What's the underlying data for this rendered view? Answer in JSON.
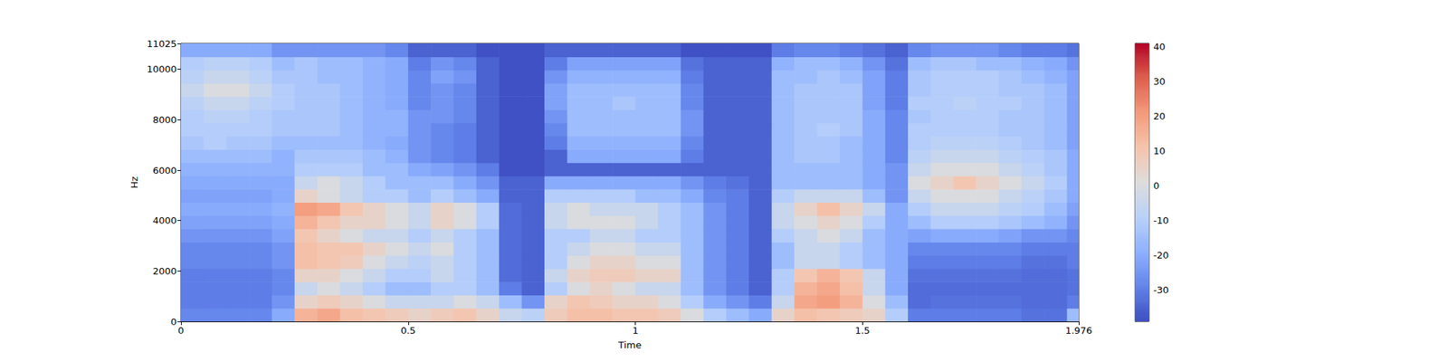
{
  "chart_data": {
    "type": "heatmap",
    "x_label": "Time",
    "y_label": "Hz",
    "xlim": [
      0,
      1.976
    ],
    "xticks": [
      0,
      0.5,
      1,
      1.5
    ],
    "ylim": [
      0,
      11025
    ],
    "yticks": [
      0,
      2000,
      4000,
      6000,
      8000,
      10000
    ],
    "grid": false,
    "color": "coolwarm",
    "x_edges": [
      0,
      0.05,
      0.1,
      0.15,
      0.2,
      0.25,
      0.3,
      0.35,
      0.4,
      0.45,
      0.5,
      0.55,
      0.6,
      0.65,
      0.7,
      0.75,
      0.8,
      0.85,
      0.9,
      0.95,
      1.0,
      1.05,
      1.1,
      1.15,
      1.2,
      1.25,
      1.3,
      1.35,
      1.4,
      1.45,
      1.5,
      1.55,
      1.6,
      1.65,
      1.7,
      1.75,
      1.8,
      1.85,
      1.9,
      1.95,
      1.976
    ],
    "y_edges": [
      0,
      525,
      1050,
      1575,
      2100,
      2625,
      3150,
      3675,
      4200,
      4725,
      5250,
      5775,
      6300,
      6825,
      7350,
      7875,
      8400,
      8925,
      9450,
      9975,
      10500,
      11025
    ],
    "values": [
      [
        -28,
        -28,
        -28,
        -28,
        -20,
        15,
        18,
        12,
        10,
        8,
        5,
        8,
        10,
        5,
        -5,
        -8,
        8,
        12,
        12,
        10,
        10,
        8,
        0,
        -10,
        -15,
        -20,
        5,
        12,
        10,
        8,
        5,
        -10,
        -30,
        -30,
        -30,
        -30,
        -30,
        -32,
        -32,
        -15
      ],
      [
        -30,
        -30,
        -30,
        -30,
        -25,
        5,
        8,
        5,
        0,
        -5,
        -5,
        -5,
        0,
        -5,
        -15,
        -25,
        5,
        10,
        8,
        5,
        5,
        0,
        -10,
        -20,
        -25,
        -30,
        -5,
        18,
        20,
        15,
        0,
        -15,
        -33,
        -32,
        -32,
        -32,
        -32,
        -33,
        -33,
        -30
      ],
      [
        -30,
        -30,
        -30,
        -30,
        -28,
        -5,
        0,
        -5,
        -10,
        -15,
        -15,
        -10,
        -10,
        -15,
        -30,
        -35,
        -10,
        0,
        5,
        0,
        -5,
        -5,
        -15,
        -25,
        -30,
        -35,
        -10,
        15,
        18,
        12,
        -5,
        -20,
        -33,
        -33,
        -33,
        -33,
        -33,
        -33,
        -33,
        -32
      ],
      [
        -30,
        -30,
        -30,
        -30,
        -28,
        5,
        5,
        0,
        -5,
        -10,
        -10,
        -5,
        -10,
        -15,
        -33,
        -35,
        -5,
        5,
        8,
        8,
        5,
        5,
        -15,
        -25,
        -30,
        -35,
        -10,
        10,
        15,
        10,
        -5,
        -20,
        -32,
        -32,
        -32,
        -32,
        -32,
        -33,
        -33,
        -32
      ],
      [
        -28,
        -28,
        -28,
        -28,
        -25,
        12,
        10,
        8,
        0,
        -5,
        -8,
        -5,
        -10,
        -15,
        -33,
        -35,
        -10,
        0,
        5,
        5,
        0,
        0,
        -15,
        -25,
        -30,
        -35,
        -15,
        -5,
        -5,
        -10,
        -15,
        -20,
        -30,
        -30,
        -30,
        -30,
        -30,
        -32,
        -32,
        -30
      ],
      [
        -28,
        -28,
        -28,
        -28,
        -25,
        12,
        10,
        10,
        5,
        0,
        -5,
        0,
        -10,
        -15,
        -33,
        -35,
        -10,
        -5,
        0,
        0,
        -5,
        -5,
        -15,
        -25,
        -30,
        -35,
        -15,
        -5,
        -5,
        -10,
        -15,
        -20,
        -28,
        -28,
        -28,
        -28,
        -28,
        -30,
        -30,
        -30
      ],
      [
        -25,
        -25,
        -25,
        -25,
        -22,
        10,
        5,
        0,
        -5,
        -5,
        -10,
        -5,
        -10,
        -15,
        -33,
        -35,
        -10,
        -10,
        -5,
        -5,
        -10,
        -10,
        -15,
        -25,
        -30,
        -35,
        -10,
        -5,
        0,
        -5,
        -15,
        -20,
        -22,
        -20,
        -20,
        -20,
        -22,
        -25,
        -25,
        -28
      ],
      [
        -22,
        -22,
        -22,
        -22,
        -20,
        15,
        10,
        5,
        5,
        0,
        -5,
        5,
        0,
        -10,
        -33,
        -35,
        -5,
        0,
        0,
        0,
        -5,
        -10,
        -15,
        -25,
        -30,
        -35,
        -5,
        0,
        5,
        0,
        -10,
        -20,
        -15,
        -10,
        -10,
        -10,
        -12,
        -15,
        -18,
        -25
      ],
      [
        -20,
        -20,
        -20,
        -20,
        -18,
        20,
        18,
        10,
        5,
        0,
        -5,
        5,
        0,
        -10,
        -33,
        -35,
        -5,
        0,
        -5,
        -5,
        -5,
        -10,
        -15,
        -25,
        -30,
        -35,
        -5,
        5,
        12,
        5,
        -5,
        -20,
        -10,
        -5,
        -5,
        -5,
        -8,
        -10,
        -15,
        -22
      ],
      [
        -22,
        -22,
        -22,
        -22,
        -20,
        5,
        0,
        -5,
        -10,
        -10,
        -15,
        -10,
        -15,
        -20,
        -35,
        -35,
        -10,
        -10,
        -10,
        -10,
        -15,
        -15,
        -20,
        -28,
        -30,
        -35,
        -10,
        -5,
        -5,
        -5,
        -15,
        -25,
        -5,
        0,
        0,
        0,
        -5,
        -8,
        -12,
        -20
      ],
      [
        -20,
        -20,
        -20,
        -20,
        -20,
        -5,
        0,
        -5,
        -10,
        -15,
        -15,
        -15,
        -20,
        -25,
        -35,
        -35,
        -20,
        -20,
        -20,
        -20,
        -20,
        -20,
        -25,
        -30,
        -32,
        -35,
        -15,
        -15,
        -15,
        -15,
        -20,
        -25,
        0,
        5,
        10,
        5,
        0,
        -5,
        -10,
        -20
      ],
      [
        -18,
        -18,
        -18,
        -18,
        -18,
        -10,
        -10,
        -10,
        -15,
        -15,
        -20,
        -22,
        -25,
        -30,
        -38,
        -38,
        -35,
        -35,
        -35,
        -35,
        -35,
        -35,
        -35,
        -35,
        -35,
        -35,
        -15,
        -15,
        -15,
        -15,
        -20,
        -25,
        -5,
        0,
        0,
        0,
        -5,
        -8,
        -12,
        -20
      ],
      [
        -15,
        -15,
        -15,
        -15,
        -18,
        -12,
        -12,
        -12,
        -15,
        -18,
        -25,
        -28,
        -30,
        -35,
        -38,
        -38,
        -35,
        -20,
        -20,
        -20,
        -20,
        -20,
        -30,
        -35,
        -35,
        -35,
        -15,
        -12,
        -12,
        -15,
        -20,
        -28,
        -8,
        -5,
        -5,
        -5,
        -8,
        -10,
        -12,
        -20
      ],
      [
        -12,
        -10,
        -12,
        -12,
        -15,
        -15,
        -15,
        -15,
        -18,
        -20,
        -25,
        -28,
        -30,
        -35,
        -38,
        -38,
        -30,
        -18,
        -18,
        -18,
        -18,
        -18,
        -28,
        -35,
        -35,
        -35,
        -15,
        -12,
        -12,
        -15,
        -20,
        -28,
        -10,
        -8,
        -8,
        -8,
        -10,
        -12,
        -15,
        -22
      ],
      [
        -10,
        -10,
        -10,
        -10,
        -12,
        -12,
        -12,
        -15,
        -18,
        -18,
        -25,
        -28,
        -30,
        -35,
        -38,
        -38,
        -28,
        -15,
        -15,
        -15,
        -15,
        -15,
        -25,
        -35,
        -35,
        -35,
        -15,
        -12,
        -10,
        -12,
        -20,
        -28,
        -10,
        -10,
        -10,
        -10,
        -12,
        -12,
        -15,
        -22
      ],
      [
        -10,
        -8,
        -8,
        -10,
        -12,
        -12,
        -12,
        -15,
        -18,
        -18,
        -25,
        -25,
        -28,
        -35,
        -38,
        -38,
        -25,
        -15,
        -15,
        -15,
        -15,
        -15,
        -25,
        -35,
        -35,
        -35,
        -15,
        -12,
        -12,
        -12,
        -20,
        -28,
        -12,
        -10,
        -10,
        -10,
        -12,
        -12,
        -15,
        -22
      ],
      [
        -8,
        -5,
        -5,
        -8,
        -10,
        -12,
        -12,
        -15,
        -18,
        -20,
        -28,
        -25,
        -28,
        -35,
        -38,
        -38,
        -22,
        -15,
        -15,
        -12,
        -15,
        -15,
        -28,
        -35,
        -35,
        -35,
        -15,
        -12,
        -12,
        -12,
        -22,
        -30,
        -10,
        -10,
        -8,
        -10,
        -10,
        -12,
        -15,
        -22
      ],
      [
        -5,
        0,
        0,
        -5,
        -10,
        -12,
        -12,
        -15,
        -18,
        -20,
        -28,
        -25,
        -28,
        -35,
        -38,
        -38,
        -22,
        -15,
        -15,
        -15,
        -15,
        -15,
        -28,
        -35,
        -35,
        -35,
        -15,
        -12,
        -12,
        -12,
        -22,
        -30,
        -12,
        -10,
        -10,
        -10,
        -12,
        -12,
        -15,
        -22
      ],
      [
        -8,
        -5,
        -5,
        -8,
        -12,
        -12,
        -15,
        -15,
        -18,
        -20,
        -28,
        -22,
        -25,
        -35,
        -38,
        -38,
        -25,
        -18,
        -18,
        -18,
        -18,
        -18,
        -30,
        -35,
        -35,
        -35,
        -15,
        -15,
        -12,
        -15,
        -22,
        -30,
        -12,
        -10,
        -10,
        -10,
        -12,
        -15,
        -18,
        -22
      ],
      [
        -10,
        -8,
        -8,
        -10,
        -15,
        -12,
        -15,
        -15,
        -18,
        -20,
        -30,
        -25,
        -28,
        -35,
        -38,
        -38,
        -30,
        -22,
        -22,
        -22,
        -22,
        -22,
        -32,
        -35,
        -35,
        -35,
        -18,
        -15,
        -15,
        -18,
        -25,
        -32,
        -15,
        -12,
        -12,
        -15,
        -15,
        -18,
        -20,
        -25
      ],
      [
        -20,
        -20,
        -20,
        -20,
        -25,
        -25,
        -25,
        -25,
        -25,
        -28,
        -35,
        -35,
        -35,
        -38,
        -38,
        -38,
        -35,
        -35,
        -35,
        -35,
        -35,
        -35,
        -38,
        -38,
        -38,
        -38,
        -30,
        -28,
        -28,
        -30,
        -32,
        -35,
        -28,
        -25,
        -25,
        -25,
        -28,
        -30,
        -30,
        -32
      ]
    ],
    "colorbar": {
      "range": [
        -39,
        41
      ],
      "ticks": [
        -30,
        -20,
        -10,
        0,
        10,
        20,
        30,
        40
      ]
    }
  }
}
